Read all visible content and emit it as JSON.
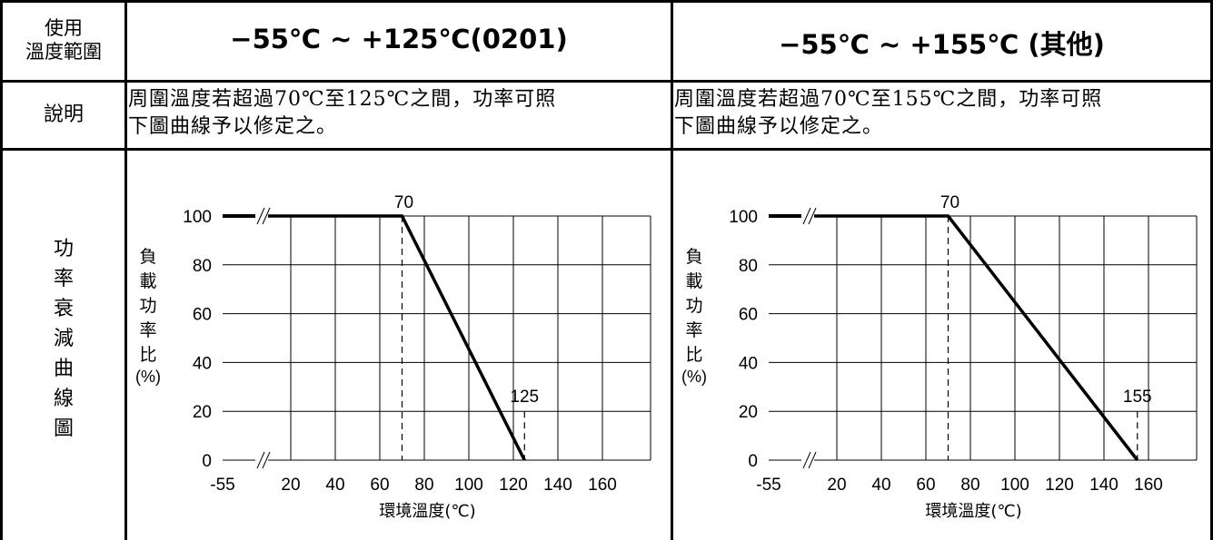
{
  "table": {
    "row1_label": "使用\n溫度範圍",
    "col1_header": "−55℃ ~ +125℃(0201)",
    "col2_header": "−55℃ ~ +155℃ (其他)",
    "row2_label": "說明",
    "col1_desc": "周圍溫度若超過70℃至125℃之間，功率可照\n下圖曲線予以修定之。",
    "col2_desc": "周圍溫度若超過70℃至155℃之間，功率可照\n下圖曲線予以修定之。",
    "row3_label": "功率衰減曲線圖"
  },
  "chart_data": [
    {
      "type": "line",
      "xlabel": "環境溫度(℃)",
      "ylabel": "負載功率比(%)",
      "x_ticks": [
        "-55",
        "20",
        "40",
        "60",
        "80",
        "100",
        "120",
        "140",
        "160"
      ],
      "y_ticks": [
        "0",
        "20",
        "40",
        "60",
        "80",
        "100"
      ],
      "xlim": [
        -55,
        170
      ],
      "ylim": [
        0,
        100
      ],
      "grid": true,
      "series": [
        {
          "x": [
            -55,
            70,
            125
          ],
          "y": [
            100,
            100,
            0
          ]
        }
      ],
      "annotations": [
        {
          "x": 70,
          "y": 100,
          "text": "70"
        },
        {
          "x": 125,
          "y": 20,
          "text": "125"
        }
      ],
      "color": "#000000"
    },
    {
      "type": "line",
      "xlabel": "環境溫度(℃)",
      "ylabel": "負載功率比(%)",
      "x_ticks": [
        "-55",
        "20",
        "40",
        "60",
        "80",
        "100",
        "120",
        "140",
        "160"
      ],
      "y_ticks": [
        "0",
        "20",
        "40",
        "60",
        "80",
        "100"
      ],
      "xlim": [
        -55,
        170
      ],
      "ylim": [
        0,
        100
      ],
      "grid": true,
      "series": [
        {
          "x": [
            -55,
            70,
            155
          ],
          "y": [
            100,
            100,
            0
          ]
        }
      ],
      "annotations": [
        {
          "x": 70,
          "y": 100,
          "text": "70"
        },
        {
          "x": 155,
          "y": 20,
          "text": "155"
        }
      ],
      "color": "#000000"
    }
  ]
}
